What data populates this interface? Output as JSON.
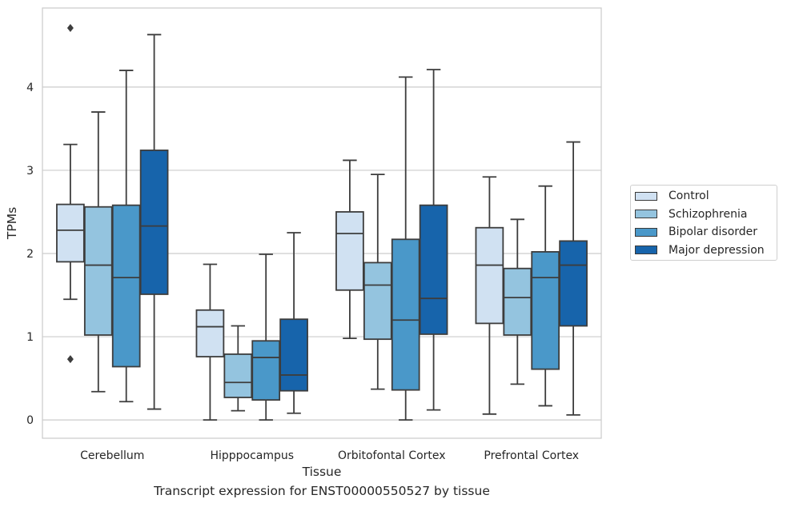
{
  "chart_data": {
    "type": "box",
    "title": "",
    "caption": "Transcript expression for ENST00000550527 by tissue",
    "xlabel": "Tissue",
    "ylabel": "TPMs",
    "categories": [
      "Cerebellum",
      "Hipppocampus",
      "Orbitofontal Cortex",
      "Prefrontal Cortex"
    ],
    "ylim": [
      -0.22,
      4.95
    ],
    "yticks": [
      0,
      1,
      2,
      3,
      4
    ],
    "grid": "horizontal",
    "legend_position": "right",
    "series": [
      {
        "name": "Control",
        "color": "#d0e1f2",
        "boxes": [
          {
            "whislo": 1.45,
            "q1": 1.9,
            "med": 2.28,
            "q3": 2.59,
            "whishi": 3.31,
            "fliers": [
              4.71,
              0.73
            ]
          },
          {
            "whislo": 0.0,
            "q1": 0.76,
            "med": 1.12,
            "q3": 1.32,
            "whishi": 1.87,
            "fliers": []
          },
          {
            "whislo": 0.98,
            "q1": 1.56,
            "med": 2.24,
            "q3": 2.5,
            "whishi": 3.12,
            "fliers": []
          },
          {
            "whislo": 0.07,
            "q1": 1.16,
            "med": 1.86,
            "q3": 2.31,
            "whishi": 2.92,
            "fliers": []
          }
        ]
      },
      {
        "name": "Schizophrenia",
        "color": "#94c4df",
        "boxes": [
          {
            "whislo": 0.34,
            "q1": 1.02,
            "med": 1.86,
            "q3": 2.56,
            "whishi": 3.7,
            "fliers": []
          },
          {
            "whislo": 0.11,
            "q1": 0.27,
            "med": 0.45,
            "q3": 0.79,
            "whishi": 1.13,
            "fliers": []
          },
          {
            "whislo": 0.37,
            "q1": 0.97,
            "med": 1.62,
            "q3": 1.89,
            "whishi": 2.95,
            "fliers": []
          },
          {
            "whislo": 0.43,
            "q1": 1.02,
            "med": 1.47,
            "q3": 1.82,
            "whishi": 2.41,
            "fliers": []
          }
        ]
      },
      {
        "name": "Bipolar disorder",
        "color": "#4a98c9",
        "boxes": [
          {
            "whislo": 0.22,
            "q1": 0.64,
            "med": 1.71,
            "q3": 2.58,
            "whishi": 4.2,
            "fliers": []
          },
          {
            "whislo": 0.0,
            "q1": 0.24,
            "med": 0.75,
            "q3": 0.95,
            "whishi": 1.99,
            "fliers": []
          },
          {
            "whislo": 0.0,
            "q1": 0.36,
            "med": 1.2,
            "q3": 2.17,
            "whishi": 4.12,
            "fliers": []
          },
          {
            "whislo": 0.17,
            "q1": 0.61,
            "med": 1.71,
            "q3": 2.02,
            "whishi": 2.81,
            "fliers": []
          }
        ]
      },
      {
        "name": "Major depression",
        "color": "#1764ab",
        "boxes": [
          {
            "whislo": 0.13,
            "q1": 1.51,
            "med": 2.33,
            "q3": 3.24,
            "whishi": 4.63,
            "fliers": []
          },
          {
            "whislo": 0.08,
            "q1": 0.35,
            "med": 0.54,
            "q3": 1.21,
            "whishi": 2.25,
            "fliers": []
          },
          {
            "whislo": 0.12,
            "q1": 1.03,
            "med": 1.46,
            "q3": 2.58,
            "whishi": 4.21,
            "fliers": []
          },
          {
            "whislo": 0.06,
            "q1": 1.13,
            "med": 1.86,
            "q3": 2.15,
            "whishi": 3.34,
            "fliers": []
          }
        ]
      }
    ]
  }
}
